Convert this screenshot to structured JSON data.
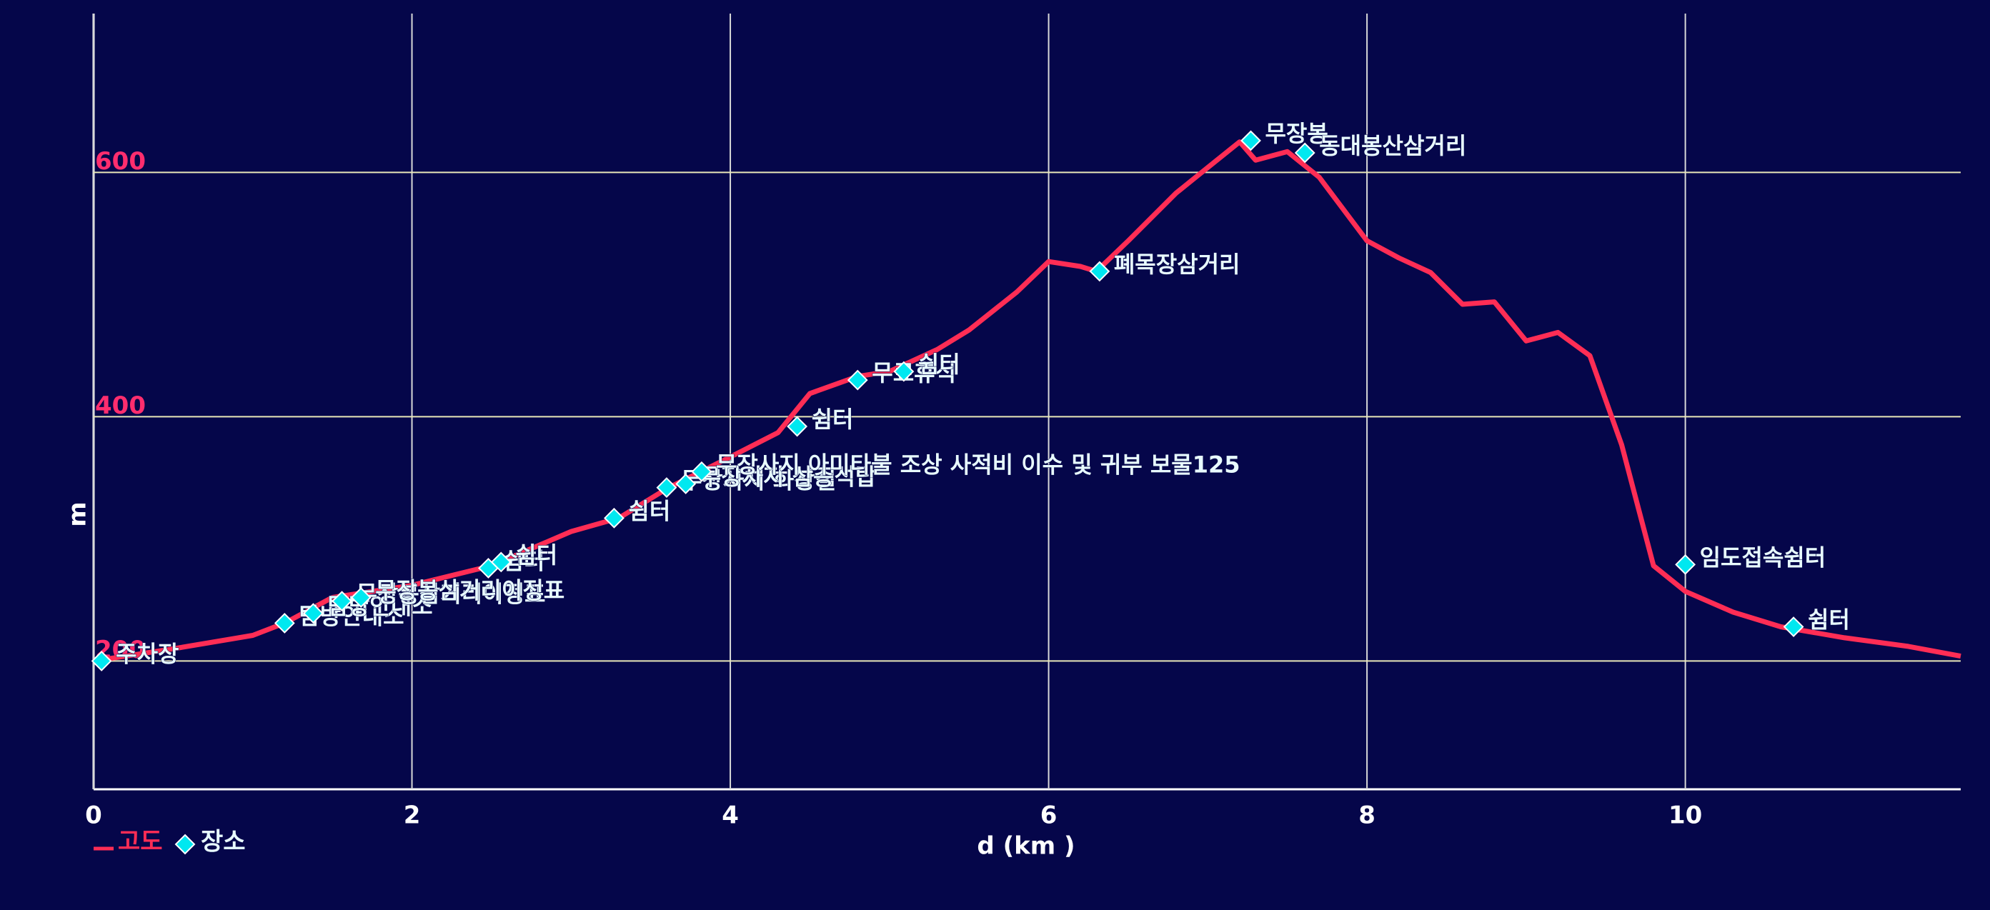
{
  "chart_data": {
    "type": "line",
    "xlabel": "d (km )",
    "ylabel": "m",
    "xlim": [
      0,
      11.73
    ],
    "ylim": [
      95,
      730
    ],
    "xticks": [
      0,
      2,
      4,
      6,
      8,
      10
    ],
    "yticks": [
      200,
      400,
      600
    ],
    "grid": true,
    "legend": "bottom-left",
    "x": [
      0,
      0.5,
      1.0,
      1.2,
      1.5,
      2.0,
      2.5,
      3.0,
      3.3,
      3.6,
      4.0,
      4.3,
      4.5,
      4.8,
      5.0,
      5.3,
      5.5,
      5.8,
      6.0,
      6.2,
      6.3,
      6.5,
      6.8,
      7.0,
      7.2,
      7.3,
      7.5,
      7.7,
      8.0,
      8.2,
      8.4,
      8.6,
      8.8,
      9.0,
      9.2,
      9.4,
      9.6,
      9.8,
      10.0,
      10.3,
      10.6,
      11.0,
      11.4,
      11.73
    ],
    "series": [
      {
        "name": "고도",
        "color": "#ff2d55",
        "values": [
          200,
          210,
          221,
          231,
          252,
          262,
          278,
          306,
          317,
          341,
          367,
          387,
          419,
          433,
          437,
          455,
          471,
          502,
          527,
          523,
          519,
          544,
          583,
          604,
          625,
          610,
          617,
          596,
          544,
          530,
          518,
          492,
          494,
          462,
          469,
          450,
          377,
          278,
          257,
          240,
          228,
          219,
          212,
          204
        ]
      }
    ],
    "places": {
      "name": "장소",
      "color": "#00e8f0",
      "x": [
        0.05,
        1.2,
        1.38,
        1.56,
        1.68,
        2.48,
        2.56,
        3.27,
        3.6,
        3.72,
        3.82,
        4.42,
        4.8,
        5.09,
        6.32,
        7.27,
        7.61,
        10.0,
        10.68
      ],
      "values": [
        200,
        231,
        239,
        249,
        252,
        276,
        281,
        317,
        342,
        345,
        355,
        392,
        430,
        437,
        519,
        626,
        616,
        279,
        228
      ],
      "labels": [
        "주차장",
        "탐방안내소",
        "탐방안내소",
        "무장봉삼거리이정표",
        "무장봉삼거리이정표",
        "쉼터",
        "쉼터",
        "쉼터",
        "무장사지 화장실",
        "무장사지 삼층석탑",
        "무장사지 아미타불 조상 사적비 이수 및 귀부 보물125",
        "쉼터",
        "무료휴식",
        "쉼터",
        "폐목장삼거리",
        "무장봉",
        "동대봉산삼거리",
        "임도접속쉼터",
        "쉼터"
      ]
    }
  }
}
